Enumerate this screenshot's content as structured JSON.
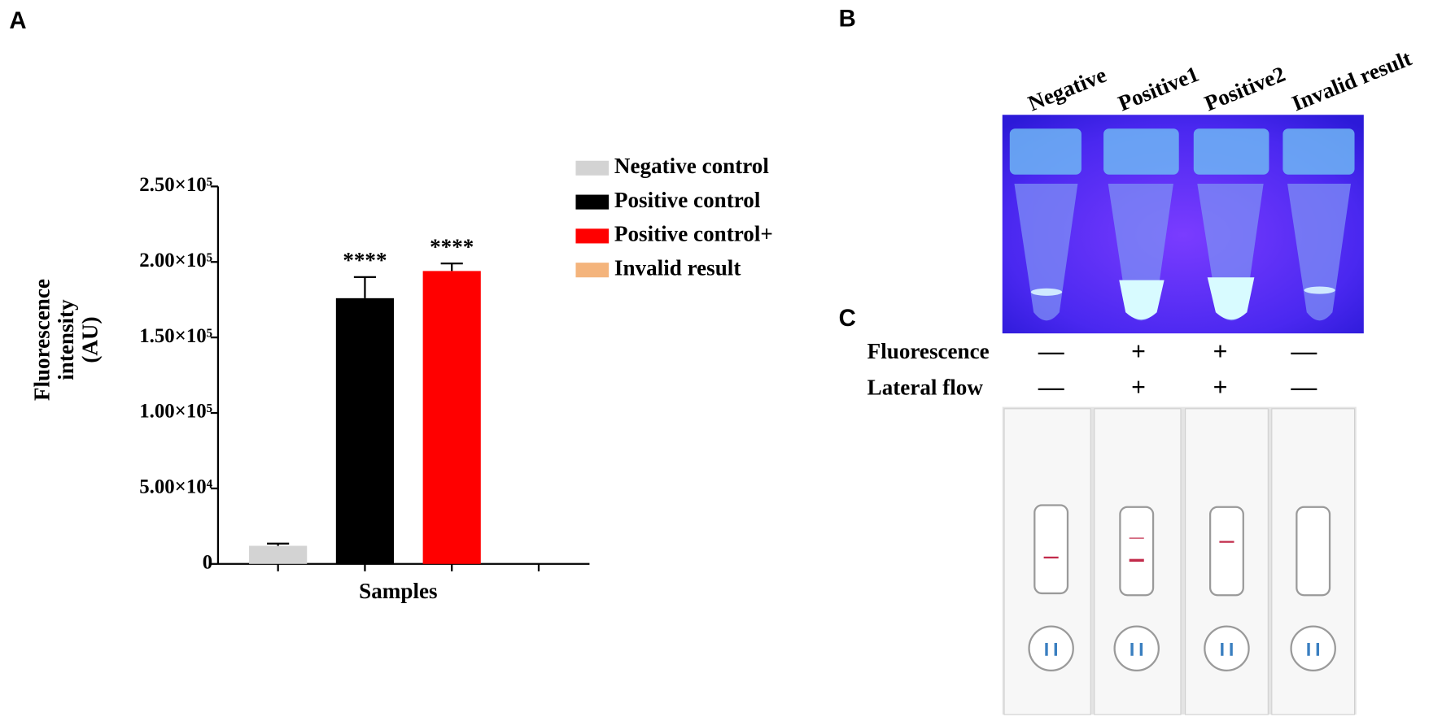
{
  "chart_data": {
    "type": "bar",
    "categories": [
      "Negative control",
      "Positive control",
      "Positive control+",
      "Invalid result"
    ],
    "values": [
      12000,
      176000,
      194000,
      0
    ],
    "errors": [
      1500,
      14000,
      5000,
      null
    ],
    "colors": [
      "#d3d3d3",
      "#000000",
      "#ff0000",
      "#f4b47c"
    ],
    "significance": [
      null,
      "****",
      "****",
      null
    ],
    "x_label": "Samples",
    "y_label": [
      "Fluorescence",
      "intensity",
      "(AU)"
    ],
    "ylim": [
      0,
      250000
    ],
    "yticks": [
      0,
      {
        "value": 50000,
        "label": "5.00×10⁴"
      },
      {
        "value": 100000,
        "label": "1.00×10⁵"
      },
      {
        "value": 150000,
        "label": "1.50×10⁵"
      },
      {
        "value": 200000,
        "label": "2.00×10⁵"
      },
      {
        "value": 250000,
        "label": "2.50×10⁵"
      }
    ]
  },
  "panel_labels": [
    "A",
    "B",
    "C"
  ],
  "tube_labels": [
    "Negative",
    "Positive1",
    "Positive2",
    "Invalid result"
  ],
  "result_table": {
    "rows": [
      {
        "label": "Fluorescence",
        "cells": [
          "—",
          "+",
          "+",
          "—"
        ]
      },
      {
        "label": "Lateral flow",
        "cells": [
          "—",
          "+",
          "+",
          "—"
        ]
      }
    ]
  }
}
